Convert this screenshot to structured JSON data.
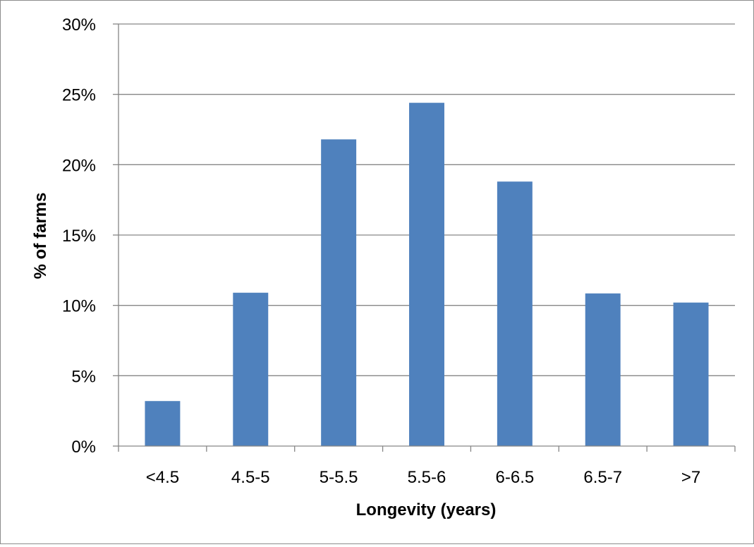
{
  "chart_data": {
    "type": "bar",
    "title": "",
    "xlabel": "Longevity (years)",
    "ylabel": "% of farms",
    "categories": [
      "<4.5",
      "4.5-5",
      "5-5.5",
      "5.5-6",
      "6-6.5",
      "6.5-7",
      ">7"
    ],
    "values": [
      3.2,
      10.9,
      21.8,
      24.4,
      18.8,
      10.85,
      10.2
    ],
    "ylim": [
      0,
      30
    ],
    "yticks": [
      "0%",
      "5%",
      "10%",
      "15%",
      "20%",
      "25%",
      "30%"
    ],
    "grid": true,
    "legend": "none",
    "colors": {
      "bar": "#4f81bd",
      "grid": "#868686",
      "axis": "#868686"
    }
  }
}
